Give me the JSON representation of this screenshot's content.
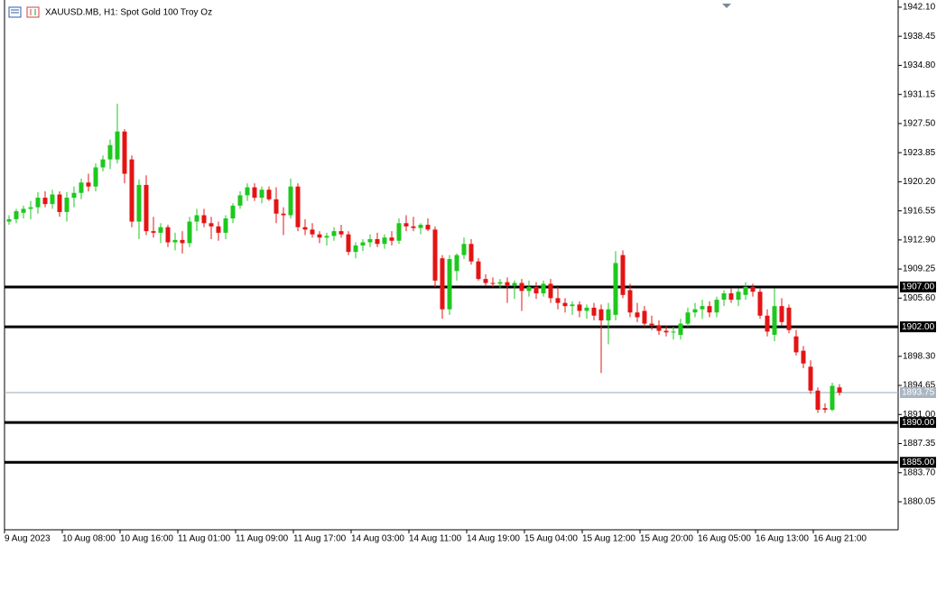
{
  "chart_data": {
    "type": "candlestick",
    "title": "XAUUSD.MB, H1:  Spot Gold 100 Troy Oz",
    "up_color": "#1ec81e",
    "down_color": "#e41414",
    "categories": [
      "9 Aug 2023",
      null,
      null,
      null,
      null,
      null,
      null,
      null,
      "10 Aug 08:00",
      null,
      null,
      null,
      null,
      null,
      null,
      null,
      "10 Aug 16:00",
      null,
      null,
      null,
      null,
      null,
      null,
      null,
      "11 Aug 01:00",
      null,
      null,
      null,
      null,
      null,
      null,
      null,
      "11 Aug 09:00",
      null,
      null,
      null,
      null,
      null,
      null,
      null,
      "11 Aug 17:00",
      null,
      null,
      null,
      null,
      null,
      null,
      null,
      "14 Aug 03:00",
      null,
      null,
      null,
      null,
      null,
      null,
      null,
      "14 Aug 11:00",
      null,
      null,
      null,
      null,
      null,
      null,
      null,
      "14 Aug 19:00",
      null,
      null,
      null,
      null,
      null,
      null,
      null,
      "15 Aug 04:00",
      null,
      null,
      null,
      null,
      null,
      null,
      null,
      "15 Aug 12:00",
      null,
      null,
      null,
      null,
      null,
      null,
      null,
      "15 Aug 20:00",
      null,
      null,
      null,
      null,
      null,
      null,
      null,
      "16 Aug 05:00",
      null,
      null,
      null,
      null,
      null,
      null,
      null,
      "16 Aug 13:00",
      null,
      null,
      null,
      null,
      null,
      null,
      null,
      "16 Aug 21:00",
      null,
      null,
      null
    ],
    "open": [
      1915.2,
      1915.5,
      1916.3,
      1916.8,
      1917.0,
      1918.2,
      1917.4,
      1918.6,
      1916.4,
      1918.2,
      1918.8,
      1920.1,
      1919.6,
      1922.0,
      1923.0,
      1923.0,
      1926.5,
      1923.0,
      1915.2,
      1919.8,
      1914.0,
      1913.8,
      1914.5,
      1912.6,
      1912.9,
      1912.5,
      1915.2,
      1916.0,
      1915.0,
      1914.6,
      1913.8,
      1915.6,
      1917.2,
      1918.5,
      1919.5,
      1918.2,
      1919.2,
      1918.0,
      1916.2,
      1916.0,
      1919.6,
      1914.5,
      1914.2,
      1913.6,
      1913.2,
      1913.4,
      1914.0,
      1913.6,
      1911.4,
      1912.2,
      1912.6,
      1913.0,
      1912.4,
      1913.2,
      1912.8,
      1915.0,
      1914.6,
      1914.4,
      1914.8,
      1914.2,
      1910.6,
      1904.2,
      1909.0,
      1911.0,
      1912.4,
      1910.2,
      1908.0,
      1907.5,
      1907.4,
      1907.6,
      1907.2,
      1907.5,
      1906.5,
      1907.0,
      1906.2,
      1907.4,
      1905.6,
      1905.0,
      1904.6,
      1904.8,
      1904.0,
      1904.4,
      1904.2,
      1902.8,
      1903.5,
      1911.0,
      1906.6,
      1903.8,
      1904.0,
      1902.4,
      1902.2,
      1901.5,
      1901.3,
      1901.0,
      1902.4,
      1903.8,
      1904.2,
      1904.6,
      1903.8,
      1905.4,
      1906.2,
      1905.4,
      1906.0,
      1907.0,
      1906.4,
      1903.4,
      1901.0,
      1904.6,
      1904.4,
      1900.8,
      1899.0,
      1897.0,
      1894.0,
      1891.8,
      1891.6,
      1894.4
    ],
    "high": [
      1916.0,
      1916.8,
      1917.2,
      1917.8,
      1918.9,
      1919.0,
      1919.2,
      1919.0,
      1918.9,
      1919.6,
      1920.6,
      1921.2,
      1922.5,
      1923.5,
      1925.5,
      1930.0,
      1926.8,
      1923.5,
      1920.5,
      1921.0,
      1915.8,
      1915.0,
      1914.8,
      1913.8,
      1914.0,
      1915.8,
      1916.8,
      1916.8,
      1915.8,
      1915.2,
      1916.0,
      1917.5,
      1919.0,
      1920.0,
      1920.0,
      1919.6,
      1919.6,
      1919.5,
      1917.0,
      1920.6,
      1920.0,
      1915.5,
      1915.0,
      1914.0,
      1913.8,
      1914.5,
      1914.8,
      1914.0,
      1912.6,
      1913.0,
      1913.6,
      1913.8,
      1913.6,
      1914.0,
      1915.6,
      1916.0,
      1915.8,
      1915.0,
      1915.6,
      1914.6,
      1911.0,
      1911.0,
      1911.2,
      1913.2,
      1913.0,
      1910.6,
      1908.6,
      1908.2,
      1908.0,
      1908.2,
      1907.8,
      1908.0,
      1907.8,
      1907.6,
      1907.8,
      1908.0,
      1907.0,
      1905.6,
      1905.2,
      1905.2,
      1904.8,
      1905.0,
      1904.8,
      1905.0,
      1911.5,
      1911.6,
      1907.4,
      1905.0,
      1904.6,
      1903.4,
      1902.8,
      1902.2,
      1902.0,
      1903.0,
      1904.4,
      1905.0,
      1905.4,
      1905.2,
      1905.8,
      1906.6,
      1906.8,
      1906.8,
      1907.6,
      1907.4,
      1906.8,
      1904.2,
      1906.8,
      1905.6,
      1904.8,
      1901.6,
      1899.6,
      1897.8,
      1894.4,
      1892.4,
      1895.0,
      1894.8
    ],
    "low": [
      1914.8,
      1915.0,
      1915.6,
      1915.5,
      1916.2,
      1917.0,
      1916.8,
      1915.8,
      1915.2,
      1917.0,
      1918.0,
      1919.0,
      1919.0,
      1921.5,
      1921.8,
      1922.5,
      1920.0,
      1914.5,
      1913.0,
      1913.5,
      1913.2,
      1912.5,
      1912.0,
      1911.6,
      1911.2,
      1912.0,
      1914.0,
      1914.5,
      1913.0,
      1912.8,
      1913.0,
      1915.0,
      1916.8,
      1917.8,
      1917.8,
      1917.5,
      1917.8,
      1915.0,
      1913.5,
      1915.6,
      1914.0,
      1913.5,
      1913.2,
      1912.5,
      1912.2,
      1912.8,
      1913.2,
      1911.0,
      1910.6,
      1911.5,
      1912.0,
      1912.0,
      1911.8,
      1912.2,
      1912.4,
      1914.0,
      1914.0,
      1913.6,
      1914.0,
      1907.0,
      1903.0,
      1903.5,
      1907.8,
      1910.5,
      1909.8,
      1907.8,
      1907.2,
      1907.0,
      1906.8,
      1905.0,
      1905.5,
      1904.0,
      1905.8,
      1905.5,
      1905.8,
      1905.0,
      1904.2,
      1903.8,
      1903.5,
      1903.2,
      1903.0,
      1902.8,
      1896.2,
      1899.8,
      1902.8,
      1905.6,
      1903.2,
      1902.6,
      1902.0,
      1901.6,
      1901.0,
      1900.8,
      1900.4,
      1900.4,
      1902.0,
      1903.2,
      1903.0,
      1903.2,
      1903.2,
      1904.6,
      1905.0,
      1904.6,
      1905.4,
      1905.8,
      1903.0,
      1900.8,
      1900.2,
      1902.2,
      1901.2,
      1898.4,
      1896.8,
      1893.6,
      1891.2,
      1891.2,
      1891.4,
      1893.4
    ],
    "close": [
      1915.5,
      1916.5,
      1916.8,
      1917.0,
      1918.2,
      1917.4,
      1918.6,
      1916.4,
      1918.2,
      1918.8,
      1920.1,
      1919.6,
      1922.0,
      1923.0,
      1924.8,
      1926.5,
      1921.2,
      1915.2,
      1919.8,
      1914.0,
      1913.8,
      1914.5,
      1912.6,
      1912.9,
      1912.5,
      1915.2,
      1916.0,
      1915.0,
      1914.6,
      1913.8,
      1915.6,
      1917.2,
      1918.5,
      1919.5,
      1918.2,
      1919.2,
      1918.0,
      1916.2,
      1916.0,
      1919.6,
      1914.5,
      1914.2,
      1913.6,
      1913.2,
      1913.4,
      1914.0,
      1913.6,
      1911.4,
      1912.2,
      1912.6,
      1913.0,
      1912.4,
      1913.2,
      1912.8,
      1915.0,
      1914.6,
      1914.4,
      1914.8,
      1914.2,
      1907.8,
      1904.2,
      1910.5,
      1911.0,
      1912.4,
      1910.2,
      1908.0,
      1907.5,
      1907.4,
      1907.6,
      1907.2,
      1907.5,
      1906.5,
      1907.0,
      1906.2,
      1907.4,
      1905.6,
      1905.0,
      1904.6,
      1904.8,
      1904.0,
      1904.4,
      1903.4,
      1902.8,
      1904.2,
      1910.0,
      1906.0,
      1903.8,
      1903.2,
      1902.4,
      1902.2,
      1901.5,
      1901.3,
      1901.4,
      1902.4,
      1903.8,
      1904.2,
      1904.6,
      1903.8,
      1905.4,
      1906.2,
      1905.4,
      1906.4,
      1907.0,
      1906.4,
      1903.4,
      1901.4,
      1904.6,
      1902.6,
      1901.6,
      1898.8,
      1897.4,
      1894.0,
      1891.6,
      1891.6,
      1894.6,
      1893.75
    ],
    "ylim": [
      1876.54,
      1943.0
    ],
    "yticks": [
      {
        "value": 1942.1,
        "label": "1942.10"
      },
      1938.45,
      {
        "value": 1934.8,
        "label": "1934.80"
      },
      1931.15,
      {
        "value": 1927.5,
        "label": "1927.50"
      },
      1923.85,
      {
        "value": 1920.2,
        "label": "1920.20"
      },
      1916.55,
      {
        "value": 1912.9,
        "label": "1912.90"
      },
      1909.25,
      {
        "value": 1905.6,
        "label": "1905.60"
      },
      {
        "value": 1898.3,
        "label": "1898.30"
      },
      1894.65,
      {
        "value": 1891.0,
        "label": "1891.00"
      },
      1887.35,
      {
        "value": 1883.7,
        "label": "1883.70"
      },
      1880.05
    ],
    "levels": [
      {
        "value": 1907,
        "label": "1907.00"
      },
      {
        "value": 1902,
        "label": "1902.00"
      },
      {
        "value": 1890,
        "label": "1890.00"
      },
      {
        "value": 1885,
        "label": "1885.00"
      }
    ],
    "current_price": 1893.75
  }
}
